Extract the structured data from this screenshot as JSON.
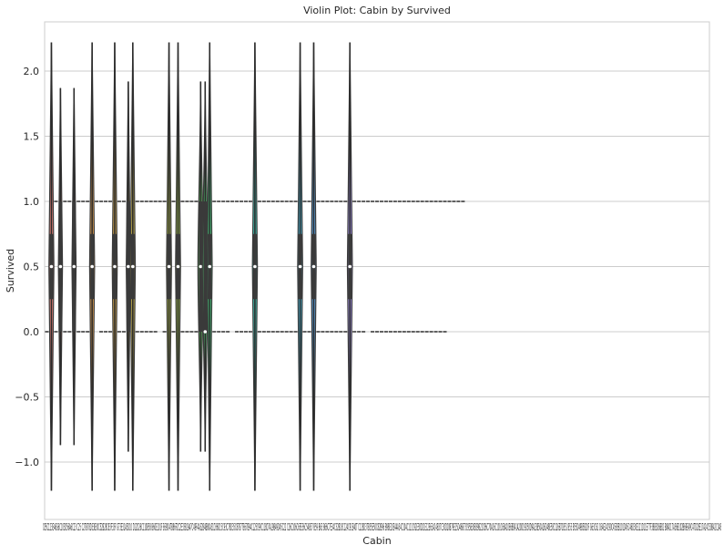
{
  "chart_data": {
    "type": "violin",
    "title": "Violin Plot: Cabin by Survived",
    "xlabel": "Cabin",
    "ylabel": "Survived",
    "ylim": [
      -1.3,
      2.4
    ],
    "yticks": [
      -1.0,
      -0.5,
      0.0,
      0.5,
      1.0,
      1.5,
      2.0
    ],
    "ytick_labels": [
      "−1.0",
      "−0.5",
      "0.0",
      "0.5",
      "1.0",
      "1.5",
      "2.0"
    ],
    "grid": true,
    "x_tick_text": "C85C123E46G6C103D56A6C23 C25 C27B78D33B30C52B28C83F33F G73E31A5D10 D12D26C110B58 B60E101F E69D47B86F2C2E33B19A7C49F4A32B4B80A31D36D15C93C78D35C87B77E67B94C125C99C118D7A19B49D45C22 C26C106C65E36C54B57 B59 B63 B66C7E34C32B18C124C91E40T C128D37B35E50C82B96 B98E10E44A34C104C111C92E38D21E12E63A14B37C30D20B79E25D46B73C95B38B39B22C86C70A16C101C68A10E68B41A20D19D50D9A23B50A26D48E58C126B71B51 B53 B55D49B5B20F G63C62 C64E24C90C45E8B101D45C46D30E121D11E77F38B3D6B82 B84D17A36B102B69E49C47D28E17A24C50B42C148",
    "categories": [
      "C85",
      "C123",
      "E46",
      "G6",
      "C103",
      "D56",
      "A6",
      "C23 C25 C27",
      "B78",
      "D33",
      "B30",
      "C52",
      "B28",
      "C83",
      "F33",
      "F G73",
      "E31",
      "A5",
      "D10 D12",
      "D26",
      "C110",
      "B58 B60",
      "E101",
      "F E69",
      "D47",
      "B86",
      "F2",
      "C2",
      "E33",
      "B19",
      "A7",
      "C49",
      "F4",
      "A32",
      "B4",
      "B80",
      "A31",
      "D36",
      "D15",
      "C93",
      "C78",
      "D35",
      "C87",
      "B77",
      "E67",
      "B94",
      "C125",
      "C99",
      "C118",
      "D7",
      "A19",
      "B49",
      "D",
      "C22 C26",
      "C106",
      "C65",
      "E36",
      "C54",
      "B57 B59 B63 B66",
      "C7",
      "E34",
      "C32",
      "B18",
      "C124",
      "C91",
      "E40",
      "T",
      "C128",
      "D37",
      "B35",
      "E50",
      "C82",
      "B96 B98",
      "E10",
      "E44",
      "A34",
      "C104",
      "C111",
      "C92",
      "E38",
      "D21",
      "E12",
      "E63",
      "A14",
      "B37",
      "C30",
      "D20",
      "B79",
      "E25",
      "D46",
      "B73",
      "C95",
      "B38",
      "B39",
      "B22",
      "C86",
      "C70",
      "A16",
      "C101",
      "C68",
      "A10",
      "E68",
      "B41",
      "A20",
      "D19",
      "D50",
      "D9",
      "A23",
      "B50",
      "A26",
      "D48",
      "E58",
      "C126",
      "B71",
      "B51 B53 B55",
      "D49",
      "B5",
      "B20",
      "F G63",
      "C62 C64",
      "E24",
      "C90",
      "C45",
      "E8",
      "B101",
      "D45",
      "C46",
      "D30",
      "E121",
      "D11",
      "E77",
      "F38",
      "B3",
      "D6",
      "B82 B84",
      "D17",
      "A36",
      "B102",
      "B69",
      "E49",
      "C47",
      "D28",
      "E17",
      "A24",
      "C50",
      "B42",
      "C148"
    ],
    "violins": [
      {
        "index": 1,
        "color": "#e8837b",
        "ymin": -1.22,
        "ymax": 2.22,
        "width": 0.55,
        "q1": 0.25,
        "median": 0.5,
        "q3": 0.75
      },
      {
        "index": 3,
        "color": "#e7856e",
        "ymin": -0.87,
        "ymax": 1.87,
        "width": 0.45,
        "q1": 0.0,
        "median": 0.5,
        "q3": 1.0
      },
      {
        "index": 6,
        "color": "#e08d5a",
        "ymin": -0.87,
        "ymax": 1.87,
        "width": 0.45,
        "q1": 0.0,
        "median": 0.5,
        "q3": 1.0
      },
      {
        "index": 10,
        "color": "#d99a4e",
        "ymin": -1.22,
        "ymax": 2.22,
        "width": 0.55,
        "q1": 0.25,
        "median": 0.5,
        "q3": 0.75
      },
      {
        "index": 15,
        "color": "#cda24a",
        "ymin": -1.22,
        "ymax": 2.22,
        "width": 0.55,
        "q1": 0.25,
        "median": 0.5,
        "q3": 0.75
      },
      {
        "index": 18,
        "color": "#c4a84a",
        "ymin": -0.92,
        "ymax": 1.92,
        "width": 0.45,
        "q1": 0.0,
        "median": 0.5,
        "q3": 1.0
      },
      {
        "index": 19,
        "color": "#bfab4a",
        "ymin": -1.22,
        "ymax": 2.22,
        "width": 0.55,
        "q1": 0.25,
        "median": 0.5,
        "q3": 0.75
      },
      {
        "index": 27,
        "color": "#a8b24a",
        "ymin": -1.22,
        "ymax": 2.22,
        "width": 0.55,
        "q1": 0.25,
        "median": 0.5,
        "q3": 0.75
      },
      {
        "index": 29,
        "color": "#9ab74c",
        "ymin": -1.22,
        "ymax": 2.22,
        "width": 0.55,
        "q1": 0.25,
        "median": 0.5,
        "q3": 0.75
      },
      {
        "index": 34,
        "color": "#63bf62",
        "ymin": -0.92,
        "ymax": 1.92,
        "width": 0.6,
        "q1": 0.0,
        "median": 0.5,
        "q3": 1.0
      },
      {
        "index": 35,
        "color": "#4fc36e",
        "ymin": -0.92,
        "ymax": 1.92,
        "width": 0.6,
        "q1": 0.0,
        "median": 0.0,
        "q3": 1.0
      },
      {
        "index": 36,
        "color": "#45c37a",
        "ymin": -1.22,
        "ymax": 2.22,
        "width": 0.55,
        "q1": 0.25,
        "median": 0.5,
        "q3": 0.75
      },
      {
        "index": 46,
        "color": "#3fbfae",
        "ymin": -1.22,
        "ymax": 2.22,
        "width": 0.55,
        "q1": 0.25,
        "median": 0.5,
        "q3": 0.75
      },
      {
        "index": 56,
        "color": "#48b0cf",
        "ymin": -1.22,
        "ymax": 2.22,
        "width": 0.55,
        "q1": 0.25,
        "median": 0.5,
        "q3": 0.75
      },
      {
        "index": 59,
        "color": "#5aa2e0",
        "ymin": -1.22,
        "ymax": 2.22,
        "width": 0.55,
        "q1": 0.25,
        "median": 0.5,
        "q3": 0.75
      },
      {
        "index": 67,
        "color": "#9f8fe0",
        "ymin": -1.22,
        "ymax": 2.22,
        "width": 0.55,
        "q1": 0.25,
        "median": 0.5,
        "q3": 0.75
      }
    ],
    "ticks_at_one": [
      2,
      4,
      5,
      7,
      8,
      9,
      11,
      12,
      13,
      14,
      16,
      17,
      20,
      21,
      22,
      23,
      24,
      25,
      26,
      28,
      30,
      31,
      32,
      33,
      37,
      38,
      39,
      40,
      41,
      42,
      43,
      44,
      45,
      47,
      48,
      49,
      50,
      51,
      52,
      53,
      54,
      55,
      57,
      58,
      60,
      61,
      62,
      63,
      64,
      65,
      66,
      68,
      69,
      70,
      71,
      72,
      73,
      74,
      75,
      76,
      77,
      78,
      79,
      80,
      81,
      82,
      83,
      84,
      85,
      86,
      87,
      88,
      89,
      90,
      91,
      92
    ],
    "ticks_at_zero": [
      0,
      2,
      4,
      5,
      7,
      8,
      9,
      12,
      13,
      14,
      16,
      17,
      20,
      21,
      22,
      23,
      24,
      26,
      28,
      30,
      31,
      32,
      33,
      37,
      38,
      39,
      40,
      42,
      43,
      44,
      45,
      47,
      48,
      49,
      50,
      51,
      52,
      53,
      54,
      55,
      57,
      58,
      60,
      61,
      62,
      63,
      64,
      65,
      66,
      68,
      69,
      70,
      72,
      73,
      74,
      75,
      76,
      77,
      78,
      79,
      80,
      81,
      82,
      83,
      84,
      85,
      86,
      87,
      88
    ]
  }
}
